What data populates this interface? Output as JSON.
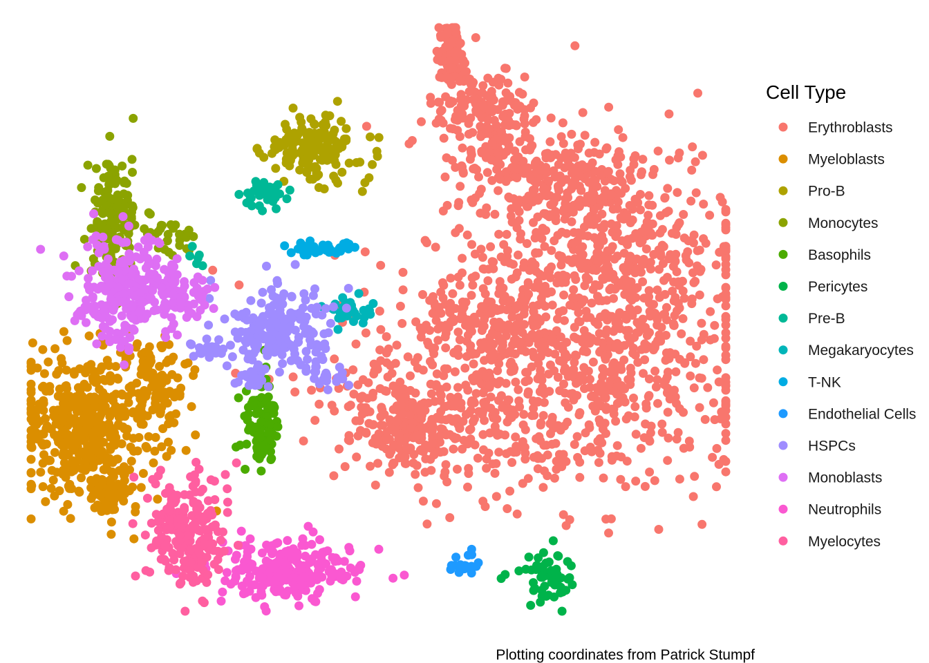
{
  "chart_data": {
    "type": "scatter",
    "title": "",
    "xlabel": "",
    "ylabel": "",
    "caption": "Plotting coordinates from Patrick Stumpf",
    "axes_visible": false,
    "grid": false,
    "legend": {
      "title": "Cell Type",
      "placement": "right"
    },
    "series": [
      {
        "name": "Erythroblasts",
        "color": "#F8766D",
        "clusters": [
          {
            "cx": 655,
            "cy": 75,
            "sx": 12,
            "sy": 28,
            "n": 70
          },
          {
            "cx": 700,
            "cy": 165,
            "sx": 42,
            "sy": 38,
            "n": 170
          },
          {
            "cx": 790,
            "cy": 255,
            "sx": 58,
            "sy": 32,
            "n": 210
          },
          {
            "cx": 880,
            "cy": 375,
            "sx": 95,
            "sy": 80,
            "n": 560
          },
          {
            "cx": 790,
            "cy": 560,
            "sx": 150,
            "sy": 80,
            "n": 760
          },
          {
            "cx": 700,
            "cy": 460,
            "sx": 45,
            "sy": 30,
            "n": 120
          },
          {
            "cx": 600,
            "cy": 620,
            "sx": 50,
            "sy": 30,
            "n": 190
          }
        ]
      },
      {
        "name": "Myeloblasts",
        "color": "#DB8E00",
        "clusters": [
          {
            "cx": 125,
            "cy": 620,
            "sx": 52,
            "sy": 55,
            "n": 470
          },
          {
            "cx": 225,
            "cy": 555,
            "sx": 26,
            "sy": 28,
            "n": 90
          },
          {
            "cx": 155,
            "cy": 715,
            "sx": 22,
            "sy": 16,
            "n": 55
          }
        ]
      },
      {
        "name": "Pro-B",
        "color": "#AEA200",
        "clusters": [
          {
            "cx": 455,
            "cy": 215,
            "sx": 38,
            "sy": 22,
            "n": 150
          }
        ]
      },
      {
        "name": "Monocytes",
        "color": "#8BA300",
        "clusters": [
          {
            "cx": 163,
            "cy": 315,
            "sx": 18,
            "sy": 42,
            "n": 150
          },
          {
            "cx": 240,
            "cy": 340,
            "sx": 22,
            "sy": 14,
            "n": 35
          }
        ]
      },
      {
        "name": "Basophils",
        "color": "#4BAB00",
        "clusters": [
          {
            "cx": 380,
            "cy": 610,
            "sx": 13,
            "sy": 30,
            "n": 95
          }
        ]
      },
      {
        "name": "Pericytes",
        "color": "#00B34A",
        "clusters": [
          {
            "cx": 790,
            "cy": 835,
            "sx": 26,
            "sy": 20,
            "n": 55
          }
        ]
      },
      {
        "name": "Pre-B",
        "color": "#00B896",
        "clusters": [
          {
            "cx": 383,
            "cy": 280,
            "sx": 14,
            "sy": 9,
            "n": 40
          },
          {
            "cx": 288,
            "cy": 380,
            "sx": 4,
            "sy": 10,
            "n": 6
          }
        ]
      },
      {
        "name": "Megakaryocytes",
        "color": "#00B5B9",
        "clusters": [
          {
            "cx": 505,
            "cy": 450,
            "sx": 18,
            "sy": 9,
            "n": 35
          }
        ]
      },
      {
        "name": "T-NK",
        "color": "#00ACE3",
        "clusters": [
          {
            "cx": 467,
            "cy": 360,
            "sx": 20,
            "sy": 5,
            "n": 35
          }
        ]
      },
      {
        "name": "Endothelial Cells",
        "color": "#1E9AFF",
        "clusters": [
          {
            "cx": 668,
            "cy": 820,
            "sx": 14,
            "sy": 7,
            "n": 18
          }
        ]
      },
      {
        "name": "HSPCs",
        "color": "#9F8CFF",
        "clusters": [
          {
            "cx": 400,
            "cy": 480,
            "sx": 40,
            "sy": 30,
            "n": 180
          },
          {
            "cx": 310,
            "cy": 505,
            "sx": 16,
            "sy": 8,
            "n": 20
          },
          {
            "cx": 368,
            "cy": 548,
            "sx": 13,
            "sy": 7,
            "n": 25
          },
          {
            "cx": 475,
            "cy": 545,
            "sx": 14,
            "sy": 8,
            "n": 20
          }
        ]
      },
      {
        "name": "Monoblasts",
        "color": "#DE6FF4",
        "clusters": [
          {
            "cx": 185,
            "cy": 420,
            "sx": 35,
            "sy": 40,
            "n": 260
          },
          {
            "cx": 265,
            "cy": 425,
            "sx": 22,
            "sy": 16,
            "n": 50
          }
        ]
      },
      {
        "name": "Neutrophils",
        "color": "#FA58D1",
        "clusters": [
          {
            "cx": 415,
            "cy": 825,
            "sx": 52,
            "sy": 22,
            "n": 230
          }
        ]
      },
      {
        "name": "Myelocytes",
        "color": "#FF5FA0",
        "clusters": [
          {
            "cx": 272,
            "cy": 770,
            "sx": 30,
            "sy": 40,
            "n": 200
          }
        ]
      }
    ]
  }
}
